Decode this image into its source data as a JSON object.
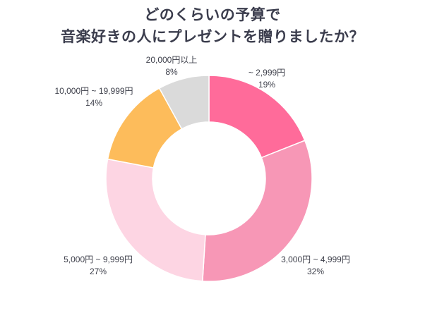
{
  "chart_data": {
    "type": "donut",
    "title": [
      "どのくらいの予算で",
      "音楽好きの人にプレゼントを贈りましたか？"
    ],
    "slices": [
      {
        "label": "~ 2,999円",
        "value": 19,
        "value_label": "19%",
        "color": "#ff6b9a"
      },
      {
        "label": "3,000円 ~ 4,999円",
        "value": 32,
        "value_label": "32%",
        "color": "#f797b6"
      },
      {
        "label": "5,000円 ~ 9,999円",
        "value": 27,
        "value_label": "27%",
        "color": "#fdd5e3"
      },
      {
        "label": "10,000円 ~ 19,999円",
        "value": 14,
        "value_label": "14%",
        "color": "#fdbc5b"
      },
      {
        "label": "20,000円以上",
        "value": 8,
        "value_label": "8%",
        "color": "#dadada"
      }
    ]
  }
}
